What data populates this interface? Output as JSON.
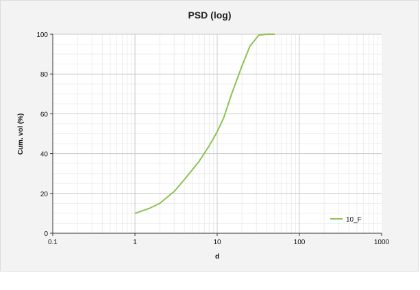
{
  "chart_data": {
    "type": "line",
    "title": "PSD (log)",
    "xlabel": "d",
    "ylabel": "Cum. vol (%)",
    "x_scale": "log",
    "xlim": [
      0.1,
      1000
    ],
    "ylim": [
      0,
      100
    ],
    "x_ticks": [
      "0.1",
      "1",
      "10",
      "100",
      "1000"
    ],
    "y_ticks": [
      "0",
      "20",
      "40",
      "60",
      "80",
      "100"
    ],
    "grid": true,
    "legend_position": "bottom-right",
    "series": [
      {
        "name": "10_F",
        "color": "#8cc152",
        "x": [
          1,
          1.5,
          2,
          3,
          4,
          6,
          8,
          10,
          12,
          15,
          20,
          25,
          32,
          40,
          50
        ],
        "y": [
          10,
          12.5,
          15,
          21,
          27,
          36,
          44,
          51,
          58,
          70,
          84,
          94,
          99.5,
          100,
          100
        ]
      }
    ]
  }
}
